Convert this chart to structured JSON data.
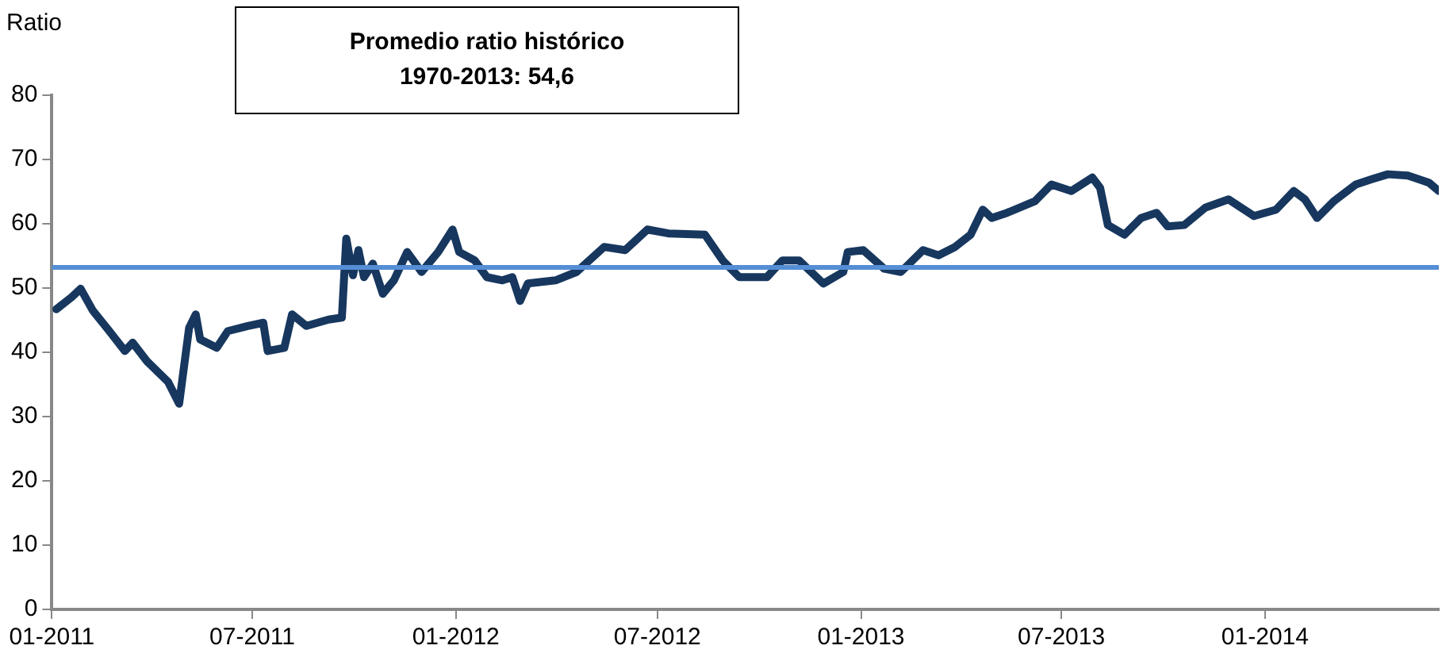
{
  "chart_data": {
    "type": "line",
    "ylabel": "Ratio",
    "annotations": [
      "Promedio ratio histórico\n1970-2013: 54,6"
    ],
    "xlim": [
      "2011-01-01",
      "2014-06-07"
    ],
    "xticks": [
      {
        "value": "2011-01-01",
        "label": "01-2011"
      },
      {
        "value": "2011-07-01",
        "label": "07-2011"
      },
      {
        "value": "2012-01-01",
        "label": "01-2012"
      },
      {
        "value": "2012-07-01",
        "label": "07-2012"
      },
      {
        "value": "2013-01-01",
        "label": "01-2013"
      },
      {
        "value": "2013-07-01",
        "label": "07-2013"
      },
      {
        "value": "2014-01-01",
        "label": "01-2014"
      }
    ],
    "ylim": [
      0,
      80
    ],
    "yticks": [
      0,
      10,
      20,
      30,
      40,
      50,
      60,
      70,
      80
    ],
    "x": [
      "2011-01-05",
      "2011-01-19",
      "2011-01-27",
      "2011-02-07",
      "2011-02-22",
      "2011-03-08",
      "2011-03-15",
      "2011-03-28",
      "2011-04-16",
      "2011-04-26",
      "2011-05-05",
      "2011-05-11",
      "2011-05-15",
      "2011-05-30",
      "2011-06-09",
      "2011-06-27",
      "2011-07-11",
      "2011-07-15",
      "2011-07-30",
      "2011-08-06",
      "2011-08-19",
      "2011-09-08",
      "2011-09-20",
      "2011-09-24",
      "2011-09-30",
      "2011-10-05",
      "2011-10-10",
      "2011-10-18",
      "2011-10-27",
      "2011-11-06",
      "2011-11-18",
      "2011-12-01",
      "2011-12-16",
      "2011-12-29",
      "2012-01-04",
      "2012-01-18",
      "2012-01-29",
      "2012-02-12",
      "2012-02-21",
      "2012-02-28",
      "2012-03-06",
      "2012-03-31",
      "2012-04-19",
      "2012-05-14",
      "2012-06-02",
      "2012-06-22",
      "2012-07-11",
      "2012-08-13",
      "2012-08-29",
      "2012-09-13",
      "2012-10-08",
      "2012-10-22",
      "2012-11-06",
      "2012-11-28",
      "2012-12-16",
      "2012-12-20",
      "2013-01-03",
      "2013-01-22",
      "2013-02-06",
      "2013-02-26",
      "2013-03-12",
      "2013-03-27",
      "2013-04-10",
      "2013-04-21",
      "2013-04-29",
      "2013-05-13",
      "2013-06-07",
      "2013-06-22",
      "2013-07-10",
      "2013-07-29",
      "2013-08-05",
      "2013-08-12",
      "2013-08-27",
      "2013-09-11",
      "2013-09-25",
      "2013-10-05",
      "2013-10-20",
      "2013-11-08",
      "2013-11-29",
      "2013-12-22",
      "2014-01-11",
      "2014-01-27",
      "2014-02-06",
      "2014-02-17",
      "2014-03-04",
      "2014-03-24",
      "2014-04-07",
      "2014-04-22",
      "2014-05-10",
      "2014-05-29",
      "2014-06-07"
    ],
    "series": [
      {
        "color": "#17375e",
        "values": [
          46.7,
          48.6,
          49.9,
          46.5,
          43.3,
          40.2,
          41.5,
          38.6,
          35.4,
          32.0,
          43.8,
          45.9,
          42.0,
          40.7,
          43.3,
          44.1,
          44.6,
          40.2,
          40.7,
          45.9,
          44.1,
          45.1,
          45.4,
          57.7,
          52.0,
          55.9,
          51.7,
          53.8,
          49.1,
          51.2,
          55.6,
          52.5,
          55.6,
          59.1,
          55.6,
          54.3,
          51.7,
          51.2,
          51.7,
          48.0,
          50.7,
          51.2,
          52.5,
          56.4,
          55.9,
          59.1,
          58.5,
          58.3,
          54.3,
          51.7,
          51.7,
          54.3,
          54.3,
          50.7,
          52.5,
          55.6,
          55.9,
          53.0,
          52.5,
          55.9,
          55.1,
          56.4,
          58.3,
          62.2,
          60.9,
          61.7,
          63.5,
          66.1,
          65.1,
          67.2,
          65.6,
          59.8,
          58.3,
          60.9,
          61.7,
          59.6,
          59.8,
          62.5,
          63.8,
          61.2,
          62.2,
          65.1,
          63.8,
          60.9,
          63.5,
          66.1,
          66.9,
          67.7,
          67.5,
          66.4,
          65.1
        ]
      }
    ],
    "ref_lines": [
      {
        "axis": "y",
        "value": 53.2,
        "color": "#558ed5"
      }
    ]
  }
}
